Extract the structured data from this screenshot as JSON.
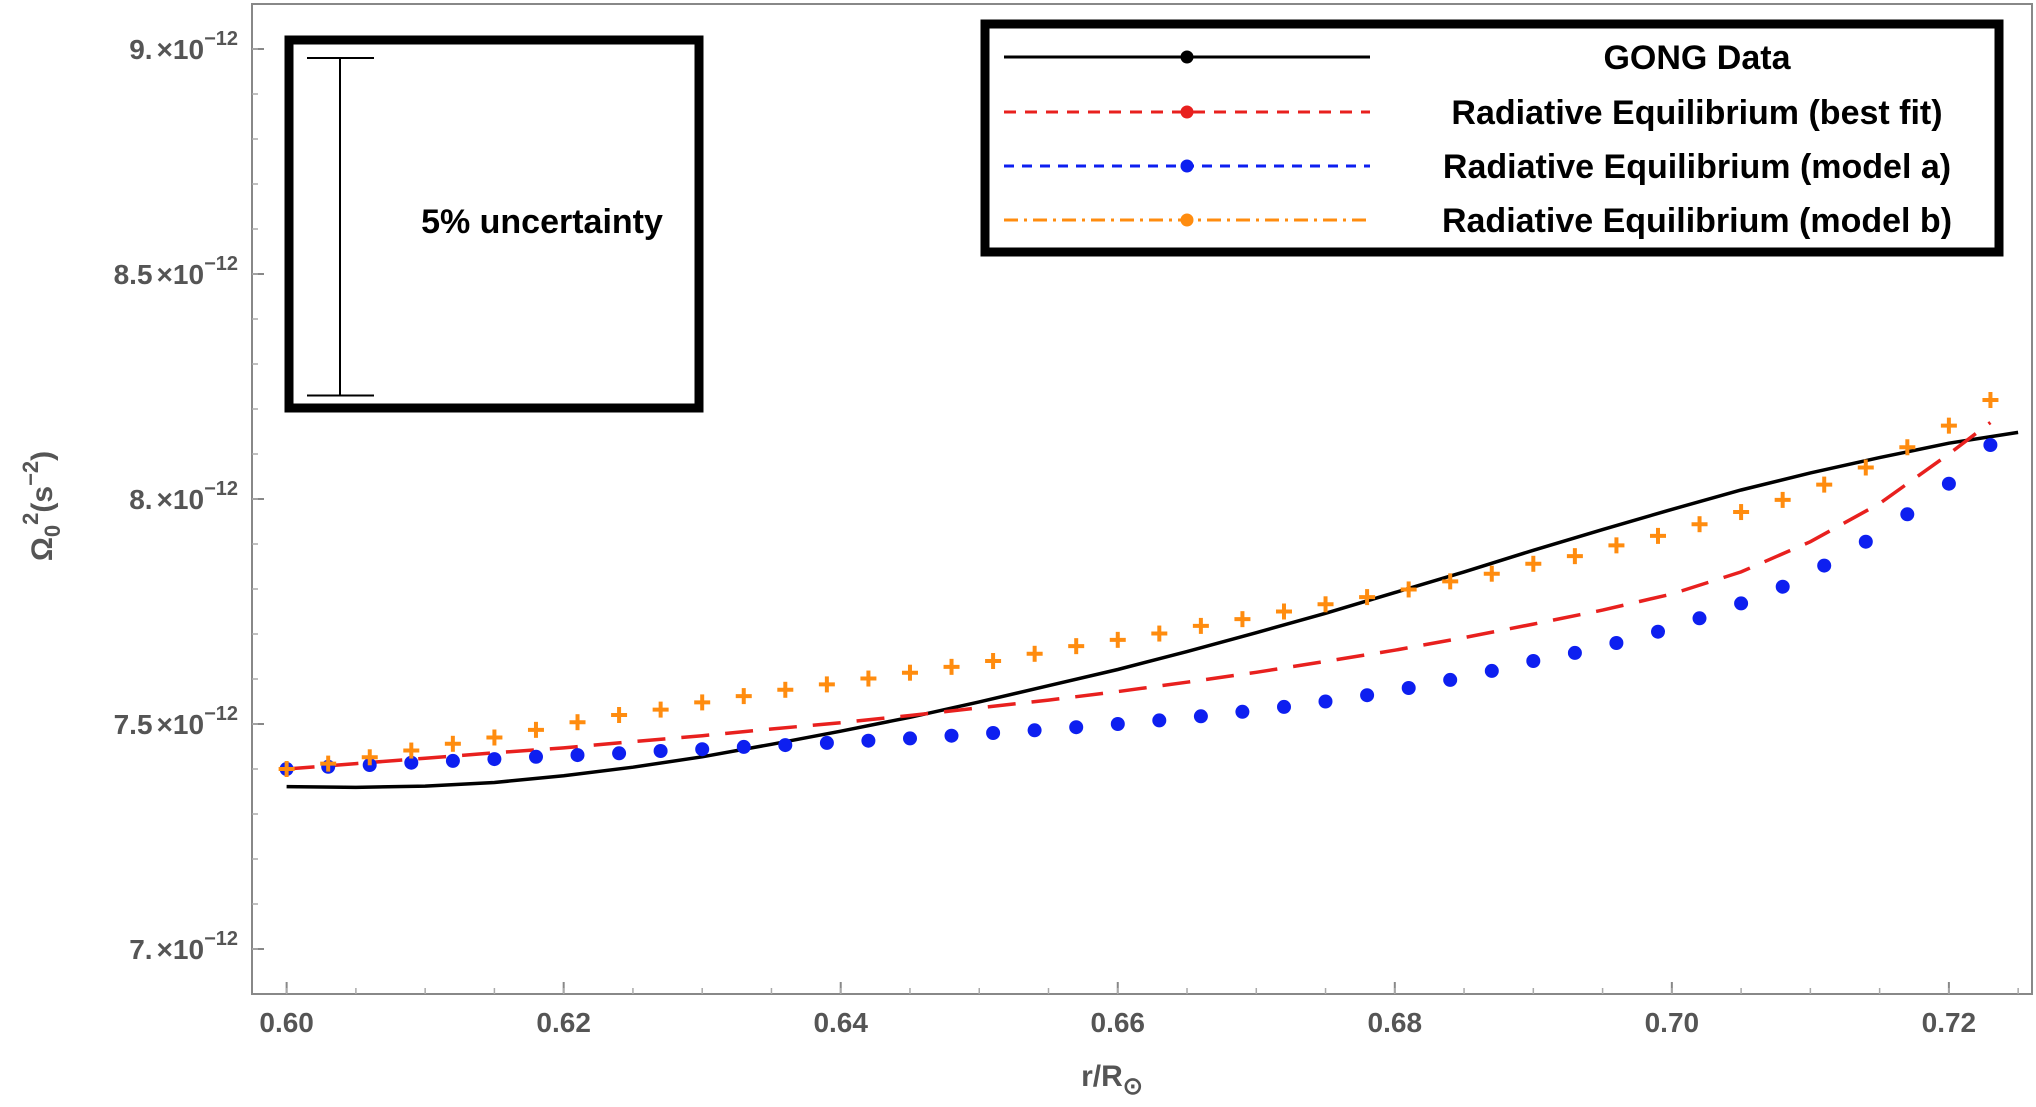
{
  "chart_data": {
    "type": "line",
    "title": "",
    "xlabel": "r/R",
    "xlabel_sub": "⊙",
    "ylabel": "Ω",
    "ylabel_sub": "0",
    "ylabel_sup": "2",
    "ylabel_unit": "(s",
    "ylabel_unit_sup": "−2",
    "ylabel_unit_close": ")",
    "xlim": [
      0.5975,
      0.726
    ],
    "ylim": [
      6.9e-12,
      9.1e-12
    ],
    "x_ticks": [
      {
        "value": 0.6,
        "label": "0.60"
      },
      {
        "value": 0.62,
        "label": "0.62"
      },
      {
        "value": 0.64,
        "label": "0.64"
      },
      {
        "value": 0.66,
        "label": "0.66"
      },
      {
        "value": 0.68,
        "label": "0.68"
      },
      {
        "value": 0.7,
        "label": "0.70"
      },
      {
        "value": 0.72,
        "label": "0.72"
      }
    ],
    "y_ticks": [
      {
        "value": 7e-12,
        "mantissa": "7.",
        "times": "×",
        "base": "10",
        "exp": "−12"
      },
      {
        "value": 7.5e-12,
        "mantissa": "7.5",
        "times": "×",
        "base": "10",
        "exp": "−12"
      },
      {
        "value": 8e-12,
        "mantissa": "8.",
        "times": "×",
        "base": "10",
        "exp": "−12"
      },
      {
        "value": 8.5e-12,
        "mantissa": "8.5",
        "times": "×",
        "base": "10",
        "exp": "−12"
      },
      {
        "value": 9e-12,
        "mantissa": "9.",
        "times": "×",
        "base": "10",
        "exp": "−12"
      }
    ],
    "grid": false,
    "legend_position": "top-right",
    "series": [
      {
        "name": "GONG Data",
        "color": "#000000",
        "style": "solid",
        "x": [
          0.6,
          0.605,
          0.61,
          0.615,
          0.62,
          0.625,
          0.63,
          0.635,
          0.64,
          0.645,
          0.65,
          0.655,
          0.66,
          0.665,
          0.67,
          0.675,
          0.68,
          0.685,
          0.69,
          0.695,
          0.7,
          0.705,
          0.71,
          0.715,
          0.72,
          0.725
        ],
        "y": [
          7.361e-12,
          7.359e-12,
          7.362e-12,
          7.37e-12,
          7.385e-12,
          7.404e-12,
          7.427e-12,
          7.455e-12,
          7.484e-12,
          7.515e-12,
          7.549e-12,
          7.585e-12,
          7.621e-12,
          7.661e-12,
          7.703e-12,
          7.746e-12,
          7.792e-12,
          7.838e-12,
          7.886e-12,
          7.932e-12,
          7.977e-12,
          8.02e-12,
          8.058e-12,
          8.092e-12,
          8.124e-12,
          8.148e-12
        ]
      },
      {
        "name": "Radiative Equilibrium (best fit)",
        "color": "#e8201e",
        "style": "dashed",
        "x": [
          0.6,
          0.605,
          0.61,
          0.615,
          0.62,
          0.625,
          0.63,
          0.635,
          0.64,
          0.645,
          0.65,
          0.655,
          0.66,
          0.665,
          0.67,
          0.675,
          0.68,
          0.685,
          0.69,
          0.695,
          0.7,
          0.705,
          0.71,
          0.715,
          0.72,
          0.723
        ],
        "y": [
          7.4e-12,
          7.412e-12,
          7.424e-12,
          7.436e-12,
          7.447e-12,
          7.461e-12,
          7.474e-12,
          7.489e-12,
          7.503e-12,
          7.519e-12,
          7.536e-12,
          7.553e-12,
          7.572e-12,
          7.593e-12,
          7.615e-12,
          7.639e-12,
          7.664e-12,
          7.692e-12,
          7.722e-12,
          7.753e-12,
          7.789e-12,
          7.838e-12,
          7.905e-12,
          7.99e-12,
          8.1e-12,
          8.17e-12
        ]
      },
      {
        "name": "Radiative Equilibrium (model a)",
        "color": "#0d1ff0",
        "style": "dots",
        "x": [
          0.6,
          0.603,
          0.606,
          0.609,
          0.612,
          0.615,
          0.618,
          0.621,
          0.624,
          0.627,
          0.63,
          0.633,
          0.636,
          0.639,
          0.642,
          0.645,
          0.648,
          0.651,
          0.654,
          0.657,
          0.66,
          0.663,
          0.666,
          0.669,
          0.672,
          0.675,
          0.678,
          0.681,
          0.684,
          0.687,
          0.69,
          0.693,
          0.696,
          0.699,
          0.702,
          0.705,
          0.708,
          0.711,
          0.714,
          0.717,
          0.72,
          0.723
        ],
        "y": [
          7.4e-12,
          7.405e-12,
          7.409e-12,
          7.414e-12,
          7.418e-12,
          7.422e-12,
          7.427e-12,
          7.431e-12,
          7.435e-12,
          7.44e-12,
          7.444e-12,
          7.449e-12,
          7.453e-12,
          7.458e-12,
          7.463e-12,
          7.468e-12,
          7.474e-12,
          7.48e-12,
          7.486e-12,
          7.493e-12,
          7.5e-12,
          7.508e-12,
          7.517e-12,
          7.527e-12,
          7.538e-12,
          7.55e-12,
          7.564e-12,
          7.58e-12,
          7.598e-12,
          7.618e-12,
          7.64e-12,
          7.658e-12,
          7.68e-12,
          7.705e-12,
          7.735e-12,
          7.768e-12,
          7.805e-12,
          7.852e-12,
          7.905e-12,
          7.966e-12,
          8.034e-12,
          8.12e-12
        ]
      },
      {
        "name": "Radiative Equilibrium (model b)",
        "color": "#ff8c0f",
        "style": "plus",
        "x": [
          0.6,
          0.603,
          0.606,
          0.609,
          0.612,
          0.615,
          0.618,
          0.621,
          0.624,
          0.627,
          0.63,
          0.633,
          0.636,
          0.639,
          0.642,
          0.645,
          0.648,
          0.651,
          0.654,
          0.657,
          0.66,
          0.663,
          0.666,
          0.669,
          0.672,
          0.675,
          0.678,
          0.681,
          0.684,
          0.687,
          0.69,
          0.693,
          0.696,
          0.699,
          0.702,
          0.705,
          0.708,
          0.711,
          0.714,
          0.717,
          0.72,
          0.723
        ],
        "y": [
          7.4e-12,
          7.412e-12,
          7.426e-12,
          7.441e-12,
          7.456e-12,
          7.47e-12,
          7.487e-12,
          7.504e-12,
          7.52e-12,
          7.532e-12,
          7.548e-12,
          7.562e-12,
          7.576e-12,
          7.588e-12,
          7.601e-12,
          7.614e-12,
          7.627e-12,
          7.64e-12,
          7.656e-12,
          7.673e-12,
          7.687e-12,
          7.701e-12,
          7.718e-12,
          7.733e-12,
          7.75e-12,
          7.766e-12,
          7.782e-12,
          7.799e-12,
          7.817e-12,
          7.834e-12,
          7.856e-12,
          7.873e-12,
          7.897e-12,
          7.918e-12,
          7.944e-12,
          7.971e-12,
          7.998e-12,
          8.032e-12,
          8.07e-12,
          8.115e-12,
          8.163e-12,
          8.22e-12
        ]
      }
    ],
    "legend": {
      "entries": [
        "GONG Data",
        "Radiative Equilibrium (best fit)",
        "Radiative Equilibrium (model a)",
        "Radiative Equilibrium (model b)"
      ]
    },
    "inset": {
      "label": "5% uncertainty",
      "bar_value_low": 8.23e-12,
      "bar_value_high": 8.98e-12
    }
  }
}
